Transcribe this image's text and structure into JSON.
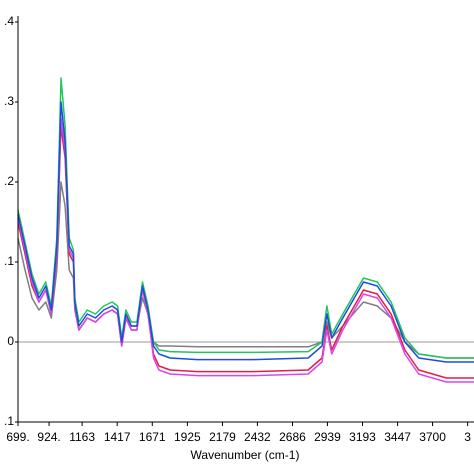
{
  "chart_data": {
    "type": "line",
    "x_label": "Wavenumber (cm-1)",
    "x": [
      699,
      750,
      800,
      850,
      900,
      940,
      980,
      1010,
      1040,
      1070,
      1100,
      1110,
      1140,
      1200,
      1260,
      1320,
      1380,
      1420,
      1450,
      1480,
      1520,
      1560,
      1600,
      1640,
      1680,
      1720,
      1800,
      2000,
      2400,
      2800,
      2900,
      2935,
      2970,
      3050,
      3200,
      3300,
      3400,
      3500,
      3600,
      3800,
      4000
    ],
    "series": [
      {
        "color": "#7f7f7f",
        "values": [
          0.13,
          0.09,
          0.055,
          0.04,
          0.05,
          0.03,
          0.09,
          0.2,
          0.17,
          0.09,
          0.08,
          0.04,
          0.015,
          0.03,
          0.025,
          0.035,
          0.04,
          0.035,
          0.005,
          0.03,
          0.02,
          0.02,
          0.055,
          0.035,
          0.0,
          -0.005,
          -0.005,
          -0.006,
          -0.006,
          -0.006,
          0.0,
          0.025,
          0.005,
          0.02,
          0.05,
          0.045,
          0.03,
          0.0,
          -0.015,
          -0.02,
          -0.02
        ]
      },
      {
        "color": "#22c55e",
        "values": [
          0.165,
          0.125,
          0.085,
          0.06,
          0.075,
          0.045,
          0.13,
          0.33,
          0.27,
          0.13,
          0.115,
          0.055,
          0.025,
          0.04,
          0.035,
          0.045,
          0.05,
          0.045,
          0.005,
          0.04,
          0.025,
          0.025,
          0.075,
          0.045,
          0.0,
          -0.01,
          -0.012,
          -0.013,
          -0.013,
          -0.012,
          0.0,
          0.045,
          0.01,
          0.035,
          0.08,
          0.075,
          0.05,
          0.005,
          -0.015,
          -0.02,
          -0.02
        ]
      },
      {
        "color": "#e11d48",
        "values": [
          0.15,
          0.11,
          0.07,
          0.05,
          0.065,
          0.035,
          0.11,
          0.27,
          0.23,
          0.11,
          0.1,
          0.045,
          0.015,
          0.03,
          0.025,
          0.035,
          0.04,
          0.035,
          -0.005,
          0.03,
          0.015,
          0.015,
          0.065,
          0.035,
          -0.015,
          -0.03,
          -0.035,
          -0.037,
          -0.037,
          -0.035,
          -0.02,
          0.02,
          -0.01,
          0.02,
          0.065,
          0.06,
          0.035,
          -0.01,
          -0.035,
          -0.045,
          -0.045
        ]
      },
      {
        "color": "#d946ef",
        "values": [
          0.155,
          0.115,
          0.075,
          0.05,
          0.065,
          0.035,
          0.115,
          0.28,
          0.24,
          0.115,
          0.105,
          0.045,
          0.015,
          0.03,
          0.025,
          0.035,
          0.04,
          0.035,
          -0.005,
          0.03,
          0.015,
          0.015,
          0.065,
          0.035,
          -0.02,
          -0.035,
          -0.04,
          -0.042,
          -0.042,
          -0.04,
          -0.025,
          0.015,
          -0.015,
          0.015,
          0.06,
          0.055,
          0.03,
          -0.015,
          -0.04,
          -0.05,
          -0.05
        ]
      },
      {
        "color": "#1d4ed8",
        "values": [
          0.16,
          0.12,
          0.08,
          0.055,
          0.07,
          0.04,
          0.12,
          0.3,
          0.25,
          0.12,
          0.11,
          0.05,
          0.02,
          0.035,
          0.03,
          0.04,
          0.045,
          0.04,
          0.0,
          0.035,
          0.02,
          0.02,
          0.07,
          0.04,
          -0.005,
          -0.015,
          -0.02,
          -0.022,
          -0.022,
          -0.02,
          -0.005,
          0.035,
          0.005,
          0.03,
          0.075,
          0.07,
          0.045,
          0.0,
          -0.02,
          -0.025,
          -0.025
        ]
      }
    ],
    "xlim": [
      699,
      4000
    ],
    "xticks": [
      {
        "value": 699,
        "label": "699."
      },
      {
        "value": 924,
        "label": "924."
      },
      1163,
      1417,
      1671,
      1925,
      2179,
      2432,
      2686,
      2939,
      3193,
      3447,
      3700,
      {
        "value": 3954,
        "label": "3"
      }
    ],
    "ylim": [
      -0.1,
      0.4
    ],
    "yticks": [
      {
        "value": 0.4,
        "label": ".4"
      },
      {
        "value": 0.3,
        "label": ".3"
      },
      {
        "value": 0.2,
        "label": ".2"
      },
      {
        "value": 0.1,
        "label": ".1"
      },
      0,
      {
        "value": -0.1,
        "label": ".1"
      }
    ],
    "zero_line": true
  }
}
